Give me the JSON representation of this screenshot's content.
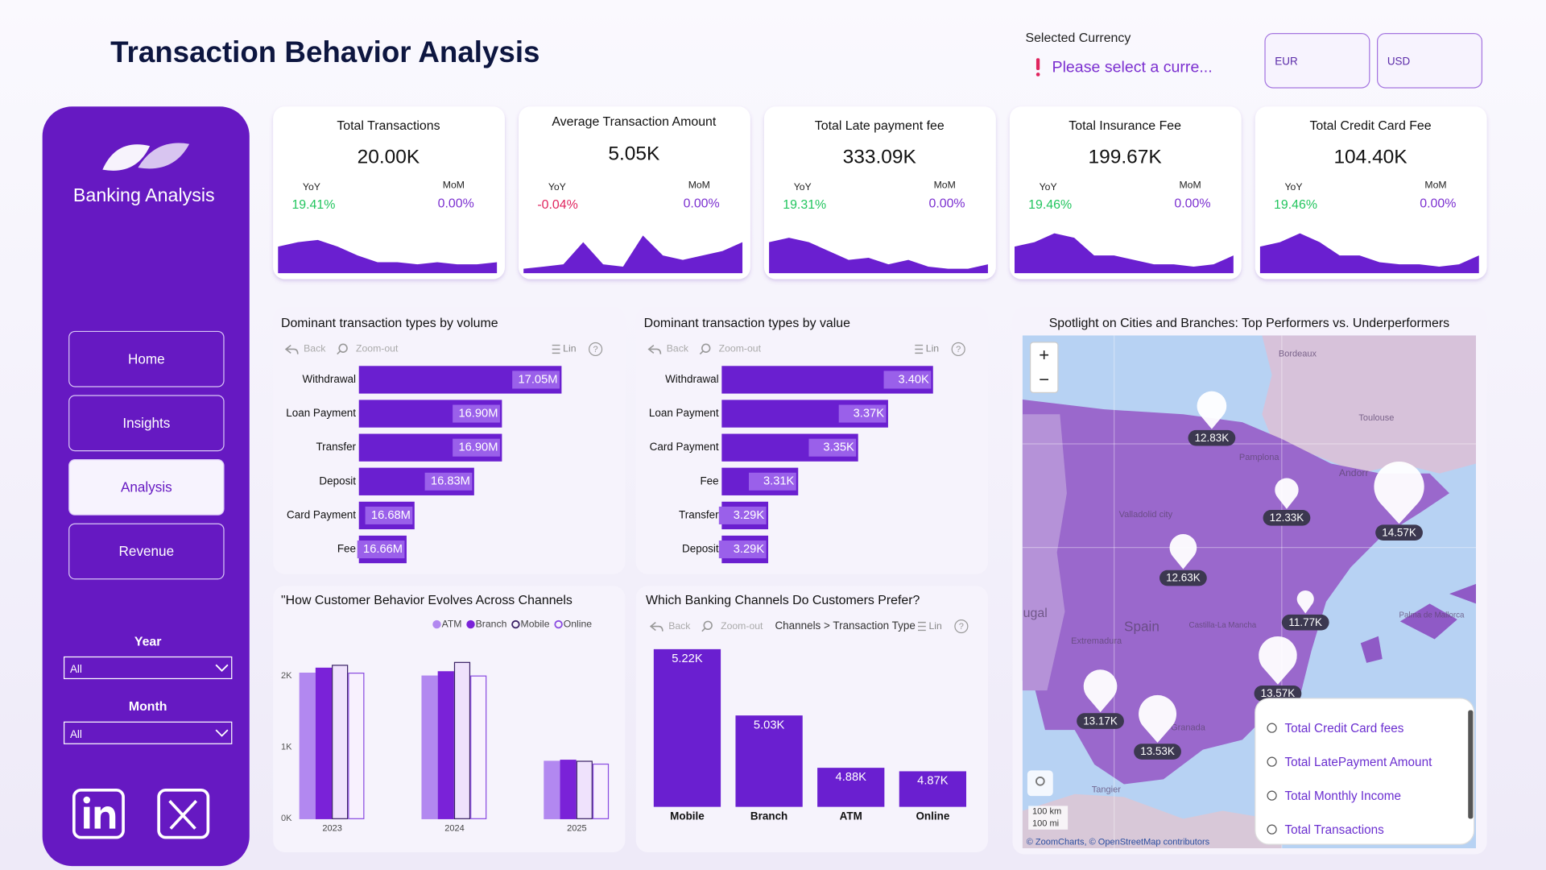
{
  "header": {
    "title": "Transaction Behavior Analysis",
    "currency_label": "Selected Currency",
    "currency_prompt": "Please select a curre...",
    "currencies": [
      "EUR",
      "USD"
    ]
  },
  "sidebar": {
    "brand": "Banking Analysis",
    "nav": [
      "Home",
      "Insights",
      "Analysis",
      "Revenue"
    ],
    "active": "Analysis",
    "filters": [
      {
        "label": "Year",
        "value": "All"
      },
      {
        "label": "Month",
        "value": "All"
      }
    ]
  },
  "kpis": {
    "trend_ylim": [
      0,
      10
    ],
    "trend_color": "#6a1fd0",
    "cards": [
      {
        "title": "Total Transactions",
        "value": "20.00K",
        "yoy_label": "YoY",
        "yoy": "19.41%",
        "mom_label": "MoM",
        "mom": "0.00%",
        "trend": [
          6,
          7,
          7.5,
          6,
          4,
          2.5,
          2.5,
          2,
          2.5,
          2,
          2,
          2.5
        ]
      },
      {
        "title": "Average Transaction Amount",
        "value": "5.05K",
        "yoy_label": "YoY",
        "yoy": "-0.04%",
        "mom_label": "MoM",
        "mom": "0.00%",
        "trend": [
          1,
          1.5,
          2,
          7,
          2,
          1.5,
          8.5,
          4,
          3,
          4,
          5,
          7
        ]
      },
      {
        "title": "Total Late payment fee",
        "value": "333.09K",
        "yoy_label": "YoY",
        "yoy": "19.31%",
        "mom_label": "MoM",
        "mom": "0.00%",
        "trend": [
          7,
          8,
          7,
          5,
          3,
          3.5,
          2,
          3,
          1.5,
          1,
          1,
          2
        ]
      },
      {
        "title": "Total Insurance Fee",
        "value": "199.67K",
        "yoy_label": "YoY",
        "yoy": "19.46%",
        "mom_label": "MoM",
        "mom": "0.00%",
        "trend": [
          6,
          7,
          9,
          8,
          4,
          4,
          3,
          2,
          2,
          1.5,
          2,
          4
        ]
      },
      {
        "title": "Total Credit Card Fee",
        "value": "104.40K",
        "yoy_label": "YoY",
        "yoy": "19.46%",
        "mom_label": "MoM",
        "mom": "0.00%",
        "trend": [
          6,
          7,
          9,
          7,
          4,
          4,
          2.5,
          2,
          2,
          1.5,
          2,
          4
        ]
      }
    ]
  },
  "chart_data": [
    {
      "type": "hbar",
      "title": "Dominant transaction types by volume",
      "toolbar": {
        "back": "Back",
        "zoom": "Zoom-out",
        "mode": "Lin",
        "help": "?"
      },
      "categories": [
        "Withdrawal",
        "Loan Payment",
        "Transfer",
        "Deposit",
        "Card Payment",
        "Fee"
      ],
      "values": [
        17050000,
        16900000,
        16900000,
        16830000,
        16680000,
        16660000
      ],
      "value_labels": [
        "17.05M",
        "16.90M",
        "16.90M",
        "16.83M",
        "16.68M",
        "16.66M"
      ],
      "xlim": [
        16540000,
        17200000
      ],
      "color": "#6a1fd0",
      "label_color": "#9a60ea"
    },
    {
      "type": "hbar",
      "title": "Dominant transaction types by value",
      "toolbar": {
        "back": "Back",
        "zoom": "Zoom-out",
        "mode": "Lin",
        "help": "?"
      },
      "categories": [
        "Withdrawal",
        "Loan Payment",
        "Card Payment",
        "Fee",
        "Transfer",
        "Deposit"
      ],
      "values": [
        3400,
        3370,
        3350,
        3310,
        3290,
        3290
      ],
      "value_labels": [
        "3.40K",
        "3.37K",
        "3.35K",
        "3.31K",
        "3.29K",
        "3.29K"
      ],
      "xlim": [
        3259,
        3434
      ],
      "color": "#6a1fd0",
      "label_color": "#9a60ea"
    },
    {
      "type": "grouped_bar",
      "title": "\"How Customer Behavior Evolves Across Channels",
      "categories": [
        "2023",
        "2024",
        "2025"
      ],
      "series": [
        {
          "name": "ATM",
          "color": "#b288f0",
          "stroke": "#b288f0",
          "values": [
            2040,
            2000,
            805
          ]
        },
        {
          "name": "Branch",
          "color": "#7a22d8",
          "stroke": "#7a22d8",
          "values": [
            2110,
            2060,
            820
          ]
        },
        {
          "name": "Mobile",
          "color": "#efe2fc",
          "stroke": "#3b2266",
          "values": [
            2150,
            2190,
            805
          ]
        },
        {
          "name": "Online",
          "color": "#f8f1fe",
          "stroke": "#8a4be0",
          "values": [
            2040,
            2000,
            765
          ]
        }
      ],
      "ylim": [
        0,
        2350
      ],
      "yticks": [
        {
          "value": 0,
          "label": "0K"
        },
        {
          "value": 1000,
          "label": "1K"
        },
        {
          "value": 2000,
          "label": "2K"
        }
      ]
    },
    {
      "type": "column",
      "title": "Which Banking Channels Do Customers Prefer?",
      "toolbar": {
        "back": "Back",
        "zoom": "Zoom-out",
        "drill": "Channels > Transaction Type",
        "mode": "Lin",
        "help": "?"
      },
      "categories": [
        "Mobile",
        "Branch",
        "ATM",
        "Online"
      ],
      "values": [
        5220,
        5030,
        4880,
        4870
      ],
      "value_labels": [
        "5.22K",
        "5.03K",
        "4.88K",
        "4.87K"
      ],
      "ylim": [
        4768,
        5243
      ],
      "color": "#6a1fd0"
    },
    {
      "type": "map",
      "title": "Spotlight on Cities and Branches: Top Performers vs. Underperformers",
      "values": [
        12830,
        12330,
        14570,
        12630,
        11770,
        13570,
        13170,
        13530
      ],
      "value_labels": [
        "12.83K",
        "12.33K",
        "14.57K",
        "12.63K",
        "11.77K",
        "13.57K",
        "13.17K",
        "13.53K"
      ],
      "sizelim": [
        11000,
        15000
      ],
      "places": [
        "Bordeaux",
        "Toulouse",
        "Andorr",
        "Pamplona",
        "Valladolid city",
        "Spain",
        "ugal",
        "Extremadura",
        "Castilla-La Mancha",
        "Granada",
        "Tangier",
        "Palma de Mallorca"
      ],
      "legend": [
        "Total Credit Card fees",
        "Total LatePayment Amount",
        "Total Monthly Income",
        "Total Transactions"
      ],
      "zoom": [
        "+",
        "−"
      ],
      "scale": [
        "100 km",
        "100 mi"
      ],
      "attribution": "© ZoomCharts, © OpenStreetMap contributors"
    }
  ]
}
